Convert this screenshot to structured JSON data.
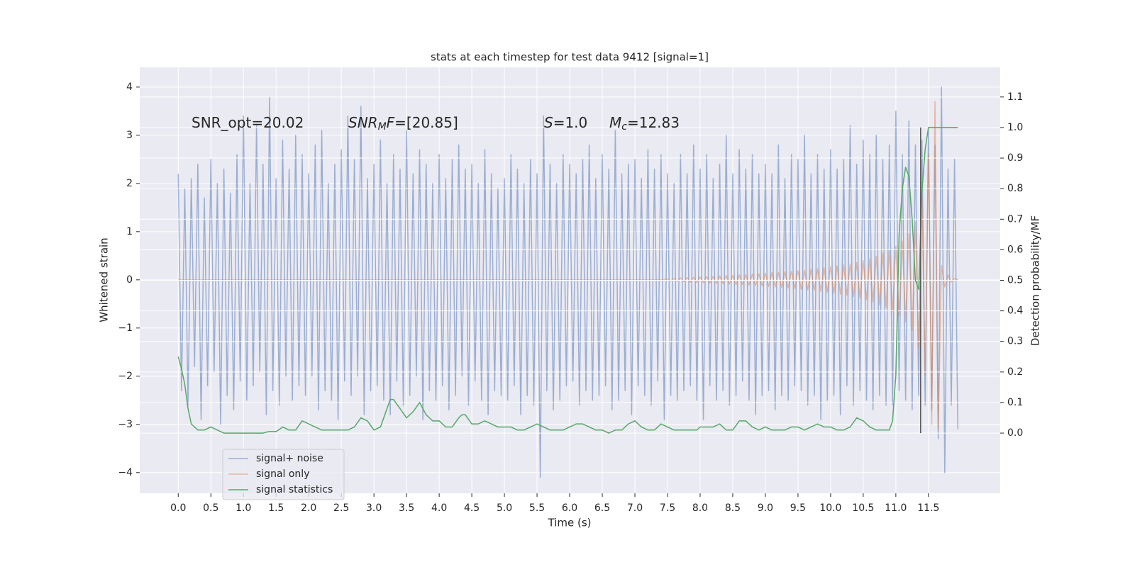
{
  "chart_data": {
    "type": "line",
    "title": "stats at each timestep for test data 9412 [signal=1]",
    "xlabel": "Time (s)",
    "ylabel": "Whitened strain",
    "y2label": "Detection probability/MF",
    "xlim": [
      -0.59,
      12.6
    ],
    "ylim": [
      -4.43,
      4.41
    ],
    "y2lim": [
      -0.197,
      1.197
    ],
    "xticks": [
      {
        "value": 0,
        "label": "0.0"
      },
      0.5,
      {
        "value": 1,
        "label": "1.0"
      },
      1.5,
      {
        "value": 2,
        "label": "2.0"
      },
      2.5,
      {
        "value": 3,
        "label": "3.0"
      },
      3.5,
      {
        "value": 4,
        "label": "4.0"
      },
      4.5,
      {
        "value": 5,
        "label": "5.0"
      },
      5.5,
      {
        "value": 6,
        "label": "6.0"
      },
      6.5,
      {
        "value": 7,
        "label": "7.0"
      },
      7.5,
      {
        "value": 8,
        "label": "8.0"
      },
      8.5,
      {
        "value": 9,
        "label": "9.0"
      },
      9.5,
      {
        "value": 10,
        "label": "10.0"
      },
      10.5,
      {
        "value": 11,
        "label": "11.0"
      },
      11.5
    ],
    "yticks": [
      {
        "value": -4,
        "label": "−4"
      },
      {
        "value": -3,
        "label": "−3"
      },
      {
        "value": -2,
        "label": "−2"
      },
      {
        "value": -1,
        "label": "−1"
      },
      0,
      1,
      2,
      3,
      4
    ],
    "y2ticks": [
      {
        "value": 0,
        "label": "0.0"
      },
      0.1,
      0.2,
      0.3,
      0.4,
      0.5,
      0.6,
      0.7,
      0.8,
      0.9,
      {
        "value": 1,
        "label": "1.0"
      },
      1.1
    ],
    "grid": true,
    "legend_loc": "lower left",
    "annotations": [
      [
        {
          "text": "SNR_opt=20.02",
          "style": "normal"
        }
      ],
      [
        {
          "text": "SNR",
          "style": "italic"
        },
        {
          "text": "M",
          "style": "sub"
        },
        {
          "text": "F",
          "style": "italic"
        },
        {
          "text": "=[20.85]",
          "style": "normal"
        }
      ],
      [
        {
          "text": "S",
          "style": "italic"
        },
        {
          "text": "=1.0",
          "style": "normal"
        }
      ],
      [
        {
          "text": "M",
          "style": "italic"
        },
        {
          "text": "c",
          "style": "sub"
        },
        {
          "text": "=12.83",
          "style": "normal"
        }
      ]
    ],
    "vline": {
      "x": 11.38,
      "y2": [
        0,
        1
      ],
      "color": "#555555"
    },
    "x": [
      0,
      0.05,
      0.1,
      0.15,
      0.2,
      0.25,
      0.3,
      0.35,
      0.4,
      0.45,
      0.5,
      0.55,
      0.6,
      0.65,
      0.7,
      0.75,
      0.8,
      0.85,
      0.9,
      0.95,
      1,
      1.05,
      1.1,
      1.15,
      1.2,
      1.25,
      1.3,
      1.35,
      1.4,
      1.45,
      1.5,
      1.55,
      1.6,
      1.65,
      1.7,
      1.75,
      1.8,
      1.85,
      1.9,
      1.95,
      2,
      2.05,
      2.1,
      2.15,
      2.2,
      2.25,
      2.3,
      2.35,
      2.4,
      2.45,
      2.5,
      2.55,
      2.6,
      2.65,
      2.7,
      2.75,
      2.8,
      2.85,
      2.9,
      2.95,
      3,
      3.05,
      3.1,
      3.15,
      3.2,
      3.25,
      3.3,
      3.35,
      3.4,
      3.45,
      3.5,
      3.55,
      3.6,
      3.65,
      3.7,
      3.75,
      3.8,
      3.85,
      3.9,
      3.95,
      4,
      4.05,
      4.1,
      4.15,
      4.2,
      4.25,
      4.3,
      4.35,
      4.4,
      4.45,
      4.5,
      4.55,
      4.6,
      4.65,
      4.7,
      4.75,
      4.8,
      4.85,
      4.9,
      4.95,
      5,
      5.05,
      5.1,
      5.15,
      5.2,
      5.25,
      5.3,
      5.35,
      5.4,
      5.45,
      5.5,
      5.55,
      5.6,
      5.65,
      5.7,
      5.75,
      5.8,
      5.85,
      5.9,
      5.95,
      6,
      6.05,
      6.1,
      6.15,
      6.2,
      6.25,
      6.3,
      6.35,
      6.4,
      6.45,
      6.5,
      6.55,
      6.6,
      6.65,
      6.7,
      6.75,
      6.8,
      6.85,
      6.9,
      6.95,
      7,
      7.05,
      7.1,
      7.15,
      7.2,
      7.25,
      7.3,
      7.35,
      7.4,
      7.45,
      7.5,
      7.55,
      7.6,
      7.65,
      7.7,
      7.75,
      7.8,
      7.85,
      7.9,
      7.95,
      8,
      8.05,
      8.1,
      8.15,
      8.2,
      8.25,
      8.3,
      8.35,
      8.4,
      8.45,
      8.5,
      8.55,
      8.6,
      8.65,
      8.7,
      8.75,
      8.8,
      8.85,
      8.9,
      8.95,
      9,
      9.05,
      9.1,
      9.15,
      9.2,
      9.25,
      9.3,
      9.35,
      9.4,
      9.45,
      9.5,
      9.55,
      9.6,
      9.65,
      9.7,
      9.75,
      9.8,
      9.85,
      9.9,
      9.95,
      10,
      10.05,
      10.1,
      10.15,
      10.2,
      10.25,
      10.3,
      10.35,
      10.4,
      10.45,
      10.5,
      10.55,
      10.6,
      10.65,
      10.7,
      10.75,
      10.8,
      10.85,
      10.9,
      10.95,
      11,
      11.05,
      11.1,
      11.15,
      11.2,
      11.25,
      11.3,
      11.35,
      11.4,
      11.45,
      11.5,
      11.55,
      11.6,
      11.65,
      11.7,
      11.75,
      11.8,
      11.85,
      11.9,
      11.95
    ],
    "series": [
      {
        "name": "signal+ noise",
        "color": "#4c72b0",
        "opacity": 0.5,
        "values": [
          2.2,
          -2.3,
          1.9,
          -2.6,
          2.1,
          -1.8,
          2.4,
          -2.9,
          1.7,
          -2.2,
          2.5,
          -1.9,
          2.0,
          -3.0,
          2.3,
          -2.4,
          1.8,
          -2.7,
          2.6,
          -2.1,
          3.4,
          -2.5,
          2.0,
          -2.2,
          3.2,
          -1.9,
          2.4,
          -2.8,
          3.8,
          -2.3,
          2.1,
          -2.6,
          2.9,
          -2.0,
          2.3,
          -2.5,
          3.0,
          -2.2,
          2.6,
          -2.4,
          2.2,
          -2.0,
          2.8,
          -2.7,
          3.1,
          -2.3,
          2.0,
          -2.5,
          2.4,
          -2.9,
          2.7,
          -2.1,
          3.4,
          -2.4,
          2.5,
          -2.0,
          3.6,
          -2.8,
          2.1,
          -2.3,
          2.4,
          -2.2,
          2.9,
          -2.5,
          2.0,
          -2.8,
          2.6,
          -2.1,
          2.3,
          -2.6,
          3.1,
          -2.4,
          2.2,
          -2.0,
          2.7,
          -2.9,
          2.4,
          -2.3,
          2.0,
          -2.5,
          2.6,
          -2.2,
          2.1,
          -2.7,
          2.5,
          -2.4,
          2.8,
          -2.0,
          2.3,
          -2.6,
          2.4,
          -2.1,
          2.0,
          -2.5,
          2.7,
          -2.8,
          2.2,
          -2.3,
          1.9,
          -2.4,
          2.1,
          -2.5,
          2.6,
          -2.2,
          2.3,
          -2.8,
          2.0,
          -2.4,
          2.5,
          -2.6,
          2.2,
          -4.1,
          3.4,
          -2.3,
          2.4,
          -2.7,
          2.0,
          -2.5,
          2.6,
          -2.2,
          2.4,
          -2.1,
          2.2,
          -2.6,
          2.5,
          -2.3,
          2.8,
          -2.5,
          2.1,
          -2.4,
          2.6,
          -2.2,
          2.3,
          -2.7,
          3.1,
          -2.5,
          2.2,
          -2.3,
          2.4,
          -2.8,
          2.5,
          -2.2,
          2.1,
          -2.4,
          2.7,
          -2.6,
          2.3,
          -2.1,
          2.6,
          -2.9,
          2.2,
          -2.4,
          2.0,
          -2.5,
          2.6,
          -2.3,
          2.2,
          -2.2,
          2.8,
          -2.5,
          2.3,
          -2.9,
          2.6,
          -2.2,
          2.1,
          -2.5,
          2.4,
          -2.3,
          3.0,
          -2.6,
          2.2,
          -2.4,
          2.7,
          -2.1,
          2.3,
          -2.5,
          2.6,
          -2.8,
          2.2,
          -2.4,
          2.4,
          -2.3,
          2.2,
          -2.7,
          2.8,
          -2.4,
          2.1,
          -2.5,
          2.6,
          -2.2,
          2.5,
          -2.3,
          3.0,
          -2.6,
          2.2,
          -2.4,
          2.6,
          -2.9,
          2.3,
          -2.5,
          2.7,
          -2.4,
          2.3,
          -2.8,
          2.5,
          -2.2,
          3.2,
          -2.6,
          2.4,
          -2.3,
          2.9,
          -2.5,
          2.6,
          -2.7,
          3.0,
          -2.4,
          2.5,
          -2.6,
          2.8,
          -2.6,
          3.5,
          -2.3,
          2.6,
          -2.5,
          3.3,
          -2.7,
          2.8,
          -2.4,
          2.9,
          -2.6,
          3.1,
          -2.7,
          2.8,
          -3.3,
          4.0,
          -4.0,
          2.3,
          -2.6,
          2.5,
          -3.1
        ]
      },
      {
        "name": "signal only",
        "color": "#dd8452",
        "opacity": 0.5,
        "values": [
          0,
          0,
          0,
          0,
          0,
          0,
          0,
          0,
          0,
          0,
          0,
          0,
          0,
          0,
          0,
          0,
          0,
          0,
          0,
          0,
          0,
          0,
          0,
          0,
          0,
          0,
          0,
          0,
          0,
          0,
          0,
          0,
          0,
          0,
          0,
          0,
          0,
          0,
          0,
          0,
          0,
          0,
          0,
          0,
          0,
          0,
          0,
          0,
          0,
          0,
          0,
          0,
          0,
          0,
          0,
          0,
          0,
          0,
          0,
          0,
          0,
          0,
          0,
          0,
          0,
          0,
          0,
          0,
          0,
          0,
          0,
          0,
          0,
          0,
          0,
          0,
          0,
          0,
          0,
          0,
          0,
          0,
          0,
          0,
          0,
          0,
          0,
          0,
          0,
          0,
          0,
          0,
          0,
          0,
          0,
          0,
          0,
          0,
          0,
          0,
          0,
          0,
          0,
          0,
          0,
          0,
          0,
          0,
          0,
          0,
          0,
          0,
          0,
          0,
          0,
          0,
          0,
          0,
          0,
          0,
          0,
          0,
          0,
          0,
          0,
          0,
          0,
          0,
          0,
          0,
          0,
          0,
          0,
          0,
          0,
          0,
          0,
          0,
          0,
          0,
          0,
          0,
          0,
          0,
          0,
          0,
          0,
          0,
          0,
          0,
          0.02,
          -0.02,
          0.03,
          -0.03,
          0.04,
          -0.04,
          0.05,
          -0.05,
          0.05,
          -0.06,
          0.06,
          -0.06,
          0.07,
          -0.07,
          0.07,
          -0.08,
          0.08,
          -0.08,
          0.09,
          -0.09,
          0.09,
          -0.1,
          0.1,
          -0.1,
          0.11,
          -0.11,
          0.12,
          -0.12,
          0.13,
          -0.13,
          0.14,
          -0.14,
          0.15,
          -0.15,
          0.16,
          -0.16,
          0.17,
          -0.17,
          0.18,
          -0.18,
          0.19,
          -0.2,
          0.2,
          -0.21,
          0.22,
          -0.22,
          0.23,
          -0.24,
          0.25,
          -0.26,
          0.27,
          -0.28,
          0.29,
          -0.3,
          0.31,
          -0.32,
          0.33,
          -0.35,
          0.36,
          -0.38,
          0.4,
          -0.42,
          0.44,
          -0.46,
          0.49,
          -0.52,
          0.55,
          -0.58,
          0.62,
          -0.66,
          0.7,
          -0.75,
          0.8,
          -0.87,
          0.95,
          -1.05,
          1.2,
          -1.4,
          1.7,
          -2.0,
          2.6,
          -3.0,
          3.7,
          -3.1,
          0.3,
          -0.15,
          0.1,
          -0.05,
          0.03,
          0
        ]
      },
      {
        "name": "signal statistics",
        "color": "#55a868",
        "opacity": 1,
        "axis": "y2",
        "values": [
          0.25,
          0.21,
          0.16,
          0.08,
          0.03,
          0.02,
          0.01,
          0.01,
          0.01,
          0.015,
          0.02,
          0.015,
          0.01,
          0.005,
          0,
          0,
          0,
          0,
          0,
          0,
          0,
          0,
          0,
          0,
          0,
          0,
          0,
          0.003,
          0.005,
          0.005,
          0.005,
          0.012,
          0.02,
          0.015,
          0.01,
          0.01,
          0.01,
          0.025,
          0.04,
          0.035,
          0.03,
          0.025,
          0.02,
          0.015,
          0.01,
          0.01,
          0.01,
          0.01,
          0.01,
          0.01,
          0.01,
          0.01,
          0.01,
          0.015,
          0.02,
          0.035,
          0.05,
          0.045,
          0.04,
          0.025,
          0.01,
          0.015,
          0.02,
          0.05,
          0.08,
          0.11,
          0.11,
          0.095,
          0.08,
          0.065,
          0.05,
          0.06,
          0.07,
          0.085,
          0.1,
          0.08,
          0.06,
          0.05,
          0.04,
          0.04,
          0.04,
          0.03,
          0.02,
          0.02,
          0.02,
          0.035,
          0.05,
          0.06,
          0.06,
          0.045,
          0.03,
          0.03,
          0.03,
          0.035,
          0.04,
          0.035,
          0.03,
          0.025,
          0.02,
          0.02,
          0.02,
          0.02,
          0.02,
          0.015,
          0.01,
          0.01,
          0.01,
          0.015,
          0.02,
          0.025,
          0.03,
          0.025,
          0.02,
          0.015,
          0.01,
          0.01,
          0.01,
          0.01,
          0.01,
          0.015,
          0.02,
          0.025,
          0.03,
          0.03,
          0.03,
          0.025,
          0.02,
          0.015,
          0.01,
          0.01,
          0.01,
          0.005,
          0,
          0.005,
          0.01,
          0.01,
          0.01,
          0.02,
          0.03,
          0.035,
          0.04,
          0.03,
          0.02,
          0.015,
          0.01,
          0.01,
          0.01,
          0.02,
          0.03,
          0.025,
          0.02,
          0.015,
          0.01,
          0.01,
          0.01,
          0.01,
          0.01,
          0.01,
          0.01,
          0.01,
          0.02,
          0.02,
          0.02,
          0.02,
          0.02,
          0.025,
          0.03,
          0.02,
          0.01,
          0.01,
          0.01,
          0.025,
          0.04,
          0.04,
          0.04,
          0.03,
          0.02,
          0.015,
          0.01,
          0.015,
          0.02,
          0.015,
          0.01,
          0.01,
          0.01,
          0.01,
          0.01,
          0.015,
          0.02,
          0.02,
          0.02,
          0.015,
          0.01,
          0.015,
          0.02,
          0.025,
          0.03,
          0.025,
          0.02,
          0.02,
          0.02,
          0.015,
          0.01,
          0.01,
          0.01,
          0.015,
          0.02,
          0.035,
          0.05,
          0.045,
          0.04,
          0.03,
          0.02,
          0.015,
          0.01,
          0.01,
          0.01,
          0.01,
          0.01,
          0.04,
          0.19,
          0.65,
          0.8,
          0.87,
          0.84,
          0.7,
          0.5,
          0.47,
          0.79,
          0.93,
          1,
          1,
          1,
          1,
          1,
          1,
          1,
          1,
          1,
          1
        ]
      }
    ]
  }
}
